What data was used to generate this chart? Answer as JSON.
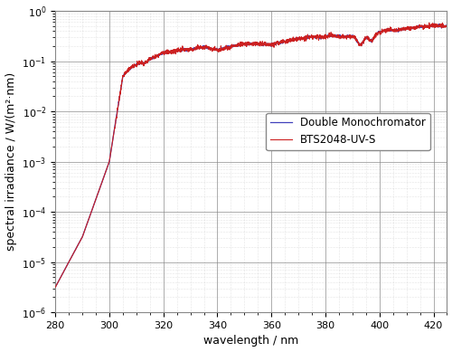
{
  "xlabel": "wavelength / nm",
  "ylabel": "spectral irradiance / W/(m²·nm)",
  "xlim": [
    280,
    425
  ],
  "ylim_log": [
    -6,
    0
  ],
  "xticks": [
    280,
    300,
    320,
    340,
    360,
    380,
    400,
    420
  ],
  "legend_blue": "Double Monochromator",
  "legend_red": "BTS2048-UV-S",
  "color_blue": "#4040bb",
  "color_red": "#cc2020",
  "background_color": "#ffffff",
  "major_grid_color": "#888888",
  "minor_grid_color": "#aaaaaa",
  "figsize": [
    5.0,
    3.89
  ],
  "dpi": 100
}
